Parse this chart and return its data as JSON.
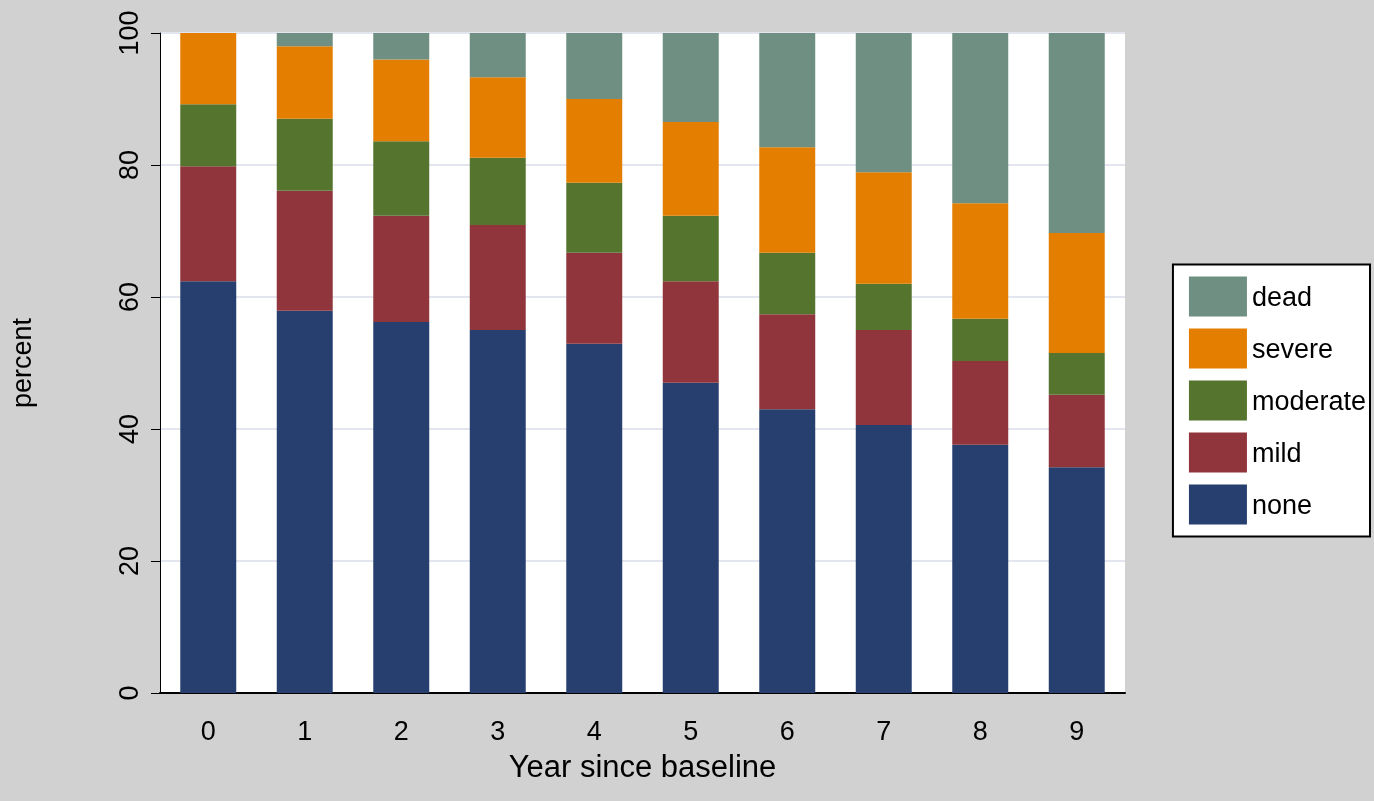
{
  "chart_data": {
    "type": "bar",
    "stacked": true,
    "xlabel": "Year since baseline",
    "ylabel": "percent",
    "categories": [
      "0",
      "1",
      "2",
      "3",
      "4",
      "5",
      "6",
      "7",
      "8",
      "9"
    ],
    "series": [
      {
        "name": "none",
        "color": "#273f6f",
        "values": [
          62.4,
          57.9,
          56.2,
          55.0,
          52.9,
          47.0,
          43.0,
          40.6,
          37.6,
          34.2
        ]
      },
      {
        "name": "mild",
        "color": "#90353b",
        "values": [
          17.4,
          18.2,
          16.1,
          15.9,
          13.8,
          15.4,
          14.4,
          14.4,
          12.7,
          11.0
        ]
      },
      {
        "name": "moderate",
        "color": "#55752f",
        "values": [
          9.4,
          10.9,
          11.3,
          10.2,
          10.6,
          9.9,
          9.3,
          7.0,
          6.4,
          6.3
        ]
      },
      {
        "name": "severe",
        "color": "#e37e00",
        "values": [
          10.8,
          11.0,
          12.4,
          12.2,
          12.7,
          14.2,
          16.0,
          16.9,
          17.5,
          18.2
        ]
      },
      {
        "name": "dead",
        "color": "#6e8f82",
        "values": [
          0,
          2.0,
          4.1,
          6.7,
          10.0,
          13.5,
          17.3,
          21.1,
          25.8,
          30.3
        ]
      }
    ],
    "ylim": [
      0,
      100
    ],
    "yticks": [
      0,
      20,
      40,
      60,
      80,
      100
    ],
    "grid": "y",
    "legend": "right"
  }
}
